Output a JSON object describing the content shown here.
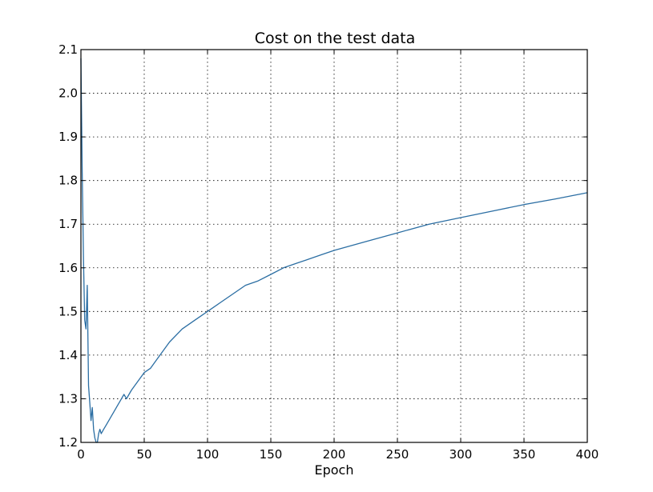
{
  "chart_data": {
    "type": "line",
    "title": "Cost on the test data",
    "xlabel": "Epoch",
    "ylabel": "",
    "xlim": [
      0,
      400
    ],
    "ylim": [
      1.2,
      2.1
    ],
    "grid": true,
    "x_ticks": [
      0,
      50,
      100,
      150,
      200,
      250,
      300,
      350,
      400
    ],
    "y_ticks": [
      1.2,
      1.3,
      1.4,
      1.5,
      1.6,
      1.7,
      1.8,
      1.9,
      2.0,
      2.1
    ],
    "x_tick_labels": [
      "0",
      "50",
      "100",
      "150",
      "200",
      "250",
      "300",
      "350",
      "400"
    ],
    "y_tick_labels": [
      "1.2",
      "1.3",
      "1.4",
      "1.5",
      "1.6",
      "1.7",
      "1.8",
      "1.9",
      "2.0",
      "2.1"
    ],
    "series": [
      {
        "color": "#2b6ea3",
        "x": [
          0,
          1,
          2,
          3,
          4,
          5,
          6,
          7,
          8,
          9,
          10,
          11,
          12,
          13,
          14,
          15,
          16,
          18,
          20,
          22,
          24,
          26,
          28,
          30,
          32,
          34,
          36,
          38,
          40,
          45,
          50,
          55,
          60,
          65,
          70,
          80,
          90,
          100,
          110,
          120,
          130,
          140,
          150,
          160,
          170,
          180,
          190,
          200,
          225,
          250,
          275,
          300,
          325,
          350,
          375,
          400
        ],
        "y": [
          2.08,
          1.82,
          1.62,
          1.48,
          1.46,
          1.56,
          1.33,
          1.29,
          1.25,
          1.28,
          1.23,
          1.21,
          1.2,
          1.2,
          1.22,
          1.23,
          1.22,
          1.23,
          1.24,
          1.25,
          1.26,
          1.27,
          1.28,
          1.29,
          1.3,
          1.31,
          1.3,
          1.31,
          1.32,
          1.34,
          1.36,
          1.37,
          1.39,
          1.41,
          1.43,
          1.46,
          1.48,
          1.5,
          1.52,
          1.54,
          1.56,
          1.57,
          1.585,
          1.6,
          1.61,
          1.62,
          1.63,
          1.64,
          1.66,
          1.68,
          1.7,
          1.715,
          1.73,
          1.745,
          1.758,
          1.772
        ]
      }
    ]
  }
}
